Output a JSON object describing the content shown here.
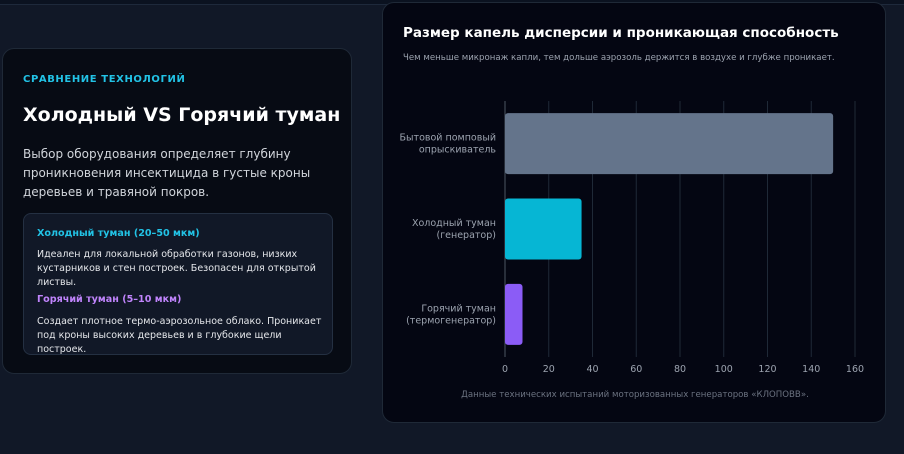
{
  "left": {
    "eyebrow": "СРАВНЕНИЕ ТЕХНОЛОГИЙ",
    "heading": "Холодный VS Горячий туман",
    "description": "Выбор оборудования определяет глубину проникновения инсектицида в густые кроны деревьев и травяной покров.",
    "cold": {
      "title": "Холодный туман (20–50 мкм)",
      "text": "Идеален для локальной обработки газонов, низких кустарников и стен построек. Безопасен для открытой листвы.",
      "color": "#22c3e6"
    },
    "hot": {
      "title": "Горячий туман (5–10 мкм)",
      "text": "Создает плотное термо-аэрозольное облако. Проникает под кроны высоких деревьев и в глубокие щели построек.",
      "color": "#c084fc"
    }
  },
  "right": {
    "footnote": "Данные технических испытаний моторизованных генераторов «КЛОПОВВ»."
  },
  "chart_data": {
    "type": "bar",
    "orientation": "horizontal",
    "title": "Размер капель дисперсии и проникающая способность",
    "subtitle": "Чем меньше микронаж капли, тем дольше аэрозоль держится в воздухе и глубже проникает.",
    "categories": [
      [
        "Бытовой помповый",
        "опрыскиватель"
      ],
      [
        "Холодный туман",
        "(генератор)"
      ],
      [
        "Горячий туман",
        "(термогенератор)"
      ]
    ],
    "values": [
      150,
      35,
      8
    ],
    "colors": [
      "#64748b",
      "#06b6d4",
      "#8b5cf6"
    ],
    "xlim": [
      0,
      160
    ],
    "xticks": [
      0,
      20,
      40,
      60,
      80,
      100,
      120,
      140,
      160
    ],
    "grid": "vertical"
  }
}
